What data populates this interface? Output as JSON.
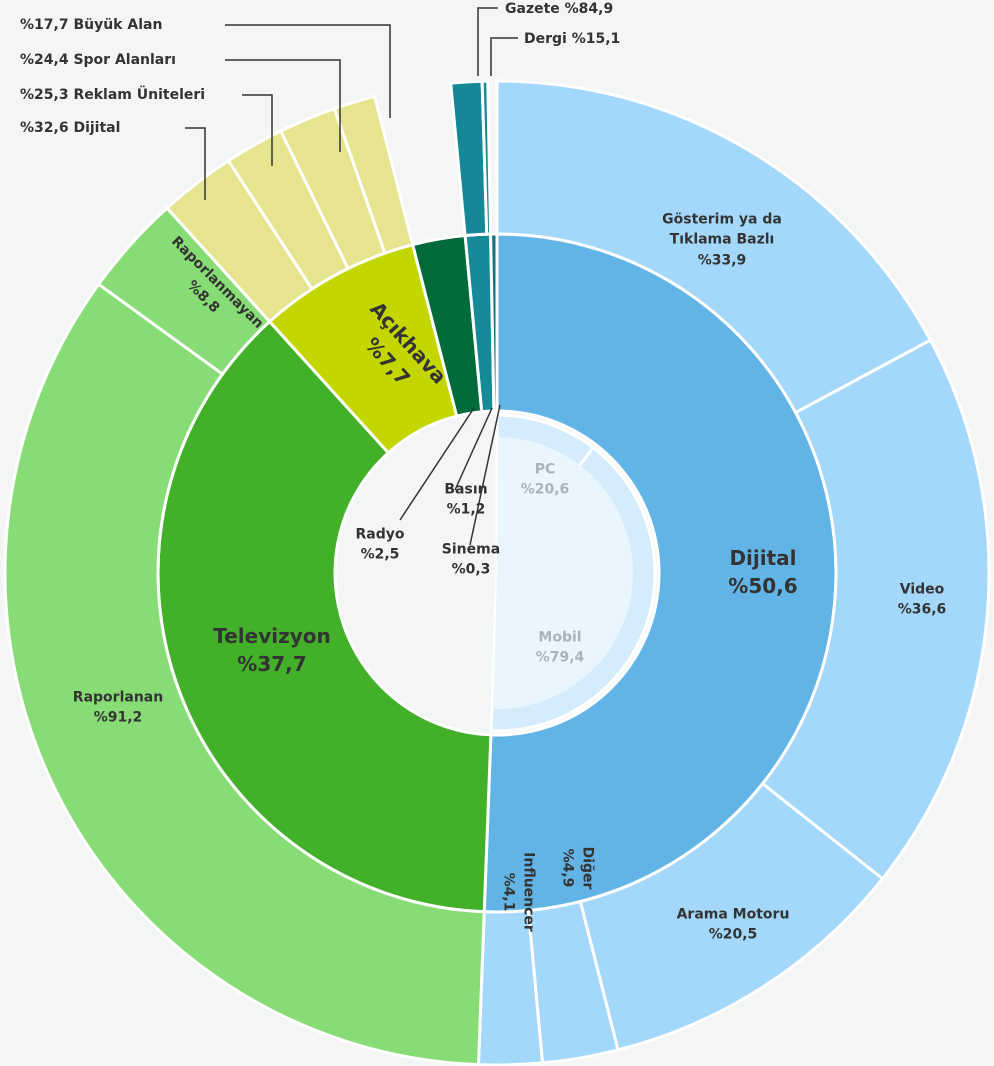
{
  "chart_data": {
    "type": "sunburst",
    "nodes": [
      {
        "name": "Dijital",
        "value": 50.6,
        "value_label": "%50,6",
        "color": "#62b4e6",
        "child_color": "#a3d8fb",
        "inner_color": "#d4ecfb",
        "children": [
          {
            "name": "Gösterim ya da Tıklama Bazlı",
            "value": 33.9,
            "value_label": "%33,9"
          },
          {
            "name": "Video",
            "value": 36.6,
            "value_label": "%36,6"
          },
          {
            "name": "Arama Motoru",
            "value": 20.5,
            "value_label": "%20,5"
          },
          {
            "name": "Diğer",
            "value": 4.9,
            "value_label": "%4,9"
          },
          {
            "name": "Influencer",
            "value": 4.1,
            "value_label": "%4,1"
          }
        ],
        "inner": [
          {
            "name": "PC",
            "value": 20.6,
            "value_label": "%20,6"
          },
          {
            "name": "Mobil",
            "value": 79.4,
            "value_label": "%79,4"
          }
        ]
      },
      {
        "name": "Televizyon",
        "value": 37.7,
        "value_label": "%37,7",
        "color": "#43b02a",
        "child_color": "#88dc76",
        "children": [
          {
            "name": "Raporlanan",
            "value": 91.2,
            "value_label": "%91,2"
          },
          {
            "name": "Raporlanmayan",
            "value": 8.8,
            "value_label": "%8,8"
          }
        ]
      },
      {
        "name": "Açıkhava",
        "value": 7.7,
        "value_label": "%7,7",
        "color": "#c4d600",
        "child_color": "#e6e48e",
        "children": [
          {
            "name": "Dijital",
            "value": 32.6,
            "value_label": "%32,6"
          },
          {
            "name": "Reklam Üniteleri",
            "value": 25.3,
            "value_label": "%25,3"
          },
          {
            "name": "Spor Alanları",
            "value": 24.4,
            "value_label": "%24,4"
          },
          {
            "name": "Büyük Alan",
            "value": 17.7,
            "value_label": "%17,7"
          }
        ]
      },
      {
        "name": "Radyo",
        "value": 2.5,
        "value_label": "%2,5",
        "color": "#006b3a"
      },
      {
        "name": "Basın",
        "value": 1.2,
        "value_label": "%1,2",
        "color": "#148a99",
        "child_color": "#158797",
        "children": [
          {
            "name": "Gazete",
            "value": 84.9,
            "value_label": "%84,9"
          },
          {
            "name": "Dergi",
            "value": 15.1,
            "value_label": "%15,1"
          }
        ]
      },
      {
        "name": "Sinema",
        "value": 0.3,
        "value_label": "%0,3",
        "color": "#1b6e7c"
      }
    ]
  }
}
